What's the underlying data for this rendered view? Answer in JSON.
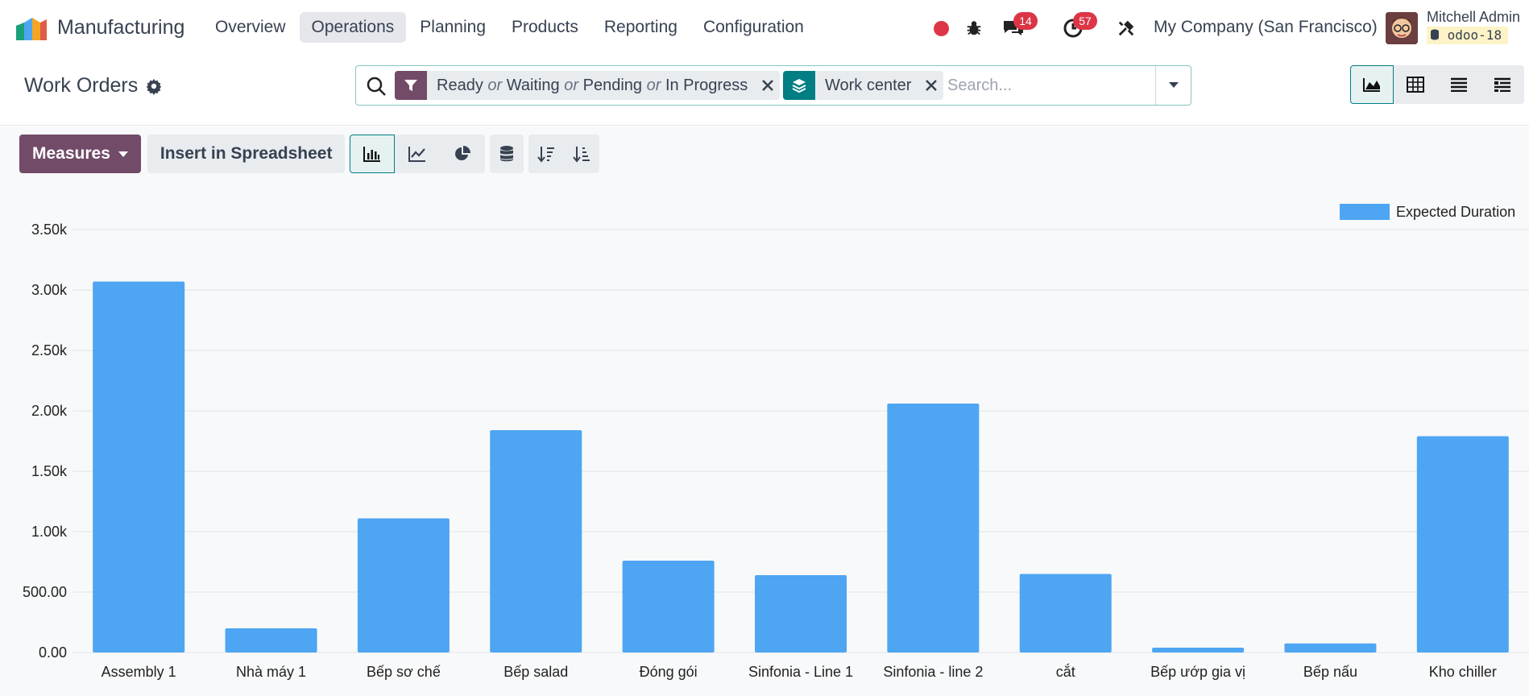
{
  "navbar": {
    "app_name": "Manufacturing",
    "menu": [
      {
        "label": "Overview",
        "active": false
      },
      {
        "label": "Operations",
        "active": true
      },
      {
        "label": "Planning",
        "active": false
      },
      {
        "label": "Products",
        "active": false
      },
      {
        "label": "Reporting",
        "active": false
      },
      {
        "label": "Configuration",
        "active": false
      }
    ],
    "messages_count": "14",
    "activities_count": "57",
    "company": "My Company (San Francisco)",
    "user_name": "Mitchell Admin",
    "database": "odoo-18",
    "brand_color": "#714b67",
    "record_color": "#dc3545"
  },
  "control_panel": {
    "title": "Work Orders",
    "search": {
      "filter_values": [
        "Ready",
        "Waiting",
        "Pending",
        "In Progress"
      ],
      "filter_separator": "or",
      "groupby_value": "Work center",
      "placeholder": "Search..."
    }
  },
  "toolbar": {
    "measures_label": "Measures",
    "spreadsheet_label": "Insert in Spreadsheet"
  },
  "chart_data": {
    "type": "bar",
    "categories": [
      "Assembly 1",
      "Nhà máy 1",
      "Bếp sơ chế",
      "Bếp salad",
      "Đóng gói",
      "Sinfonia - Line 1",
      "Sinfonia - line 2",
      "cắt",
      "Bếp ướp gia vị",
      "Bếp nấu",
      "Kho chiller"
    ],
    "series": [
      {
        "name": "Expected Duration",
        "color": "#4ea5f2",
        "values": [
          3070,
          200,
          1110,
          1840,
          760,
          640,
          2060,
          650,
          40,
          75,
          1790
        ]
      }
    ],
    "ylim": [
      0,
      3500
    ],
    "y_ticks": [
      "0.00",
      "500.00",
      "1.00k",
      "1.50k",
      "2.00k",
      "2.50k",
      "3.00k",
      "3.50k"
    ],
    "grid": true,
    "legend_position": "top-right"
  }
}
